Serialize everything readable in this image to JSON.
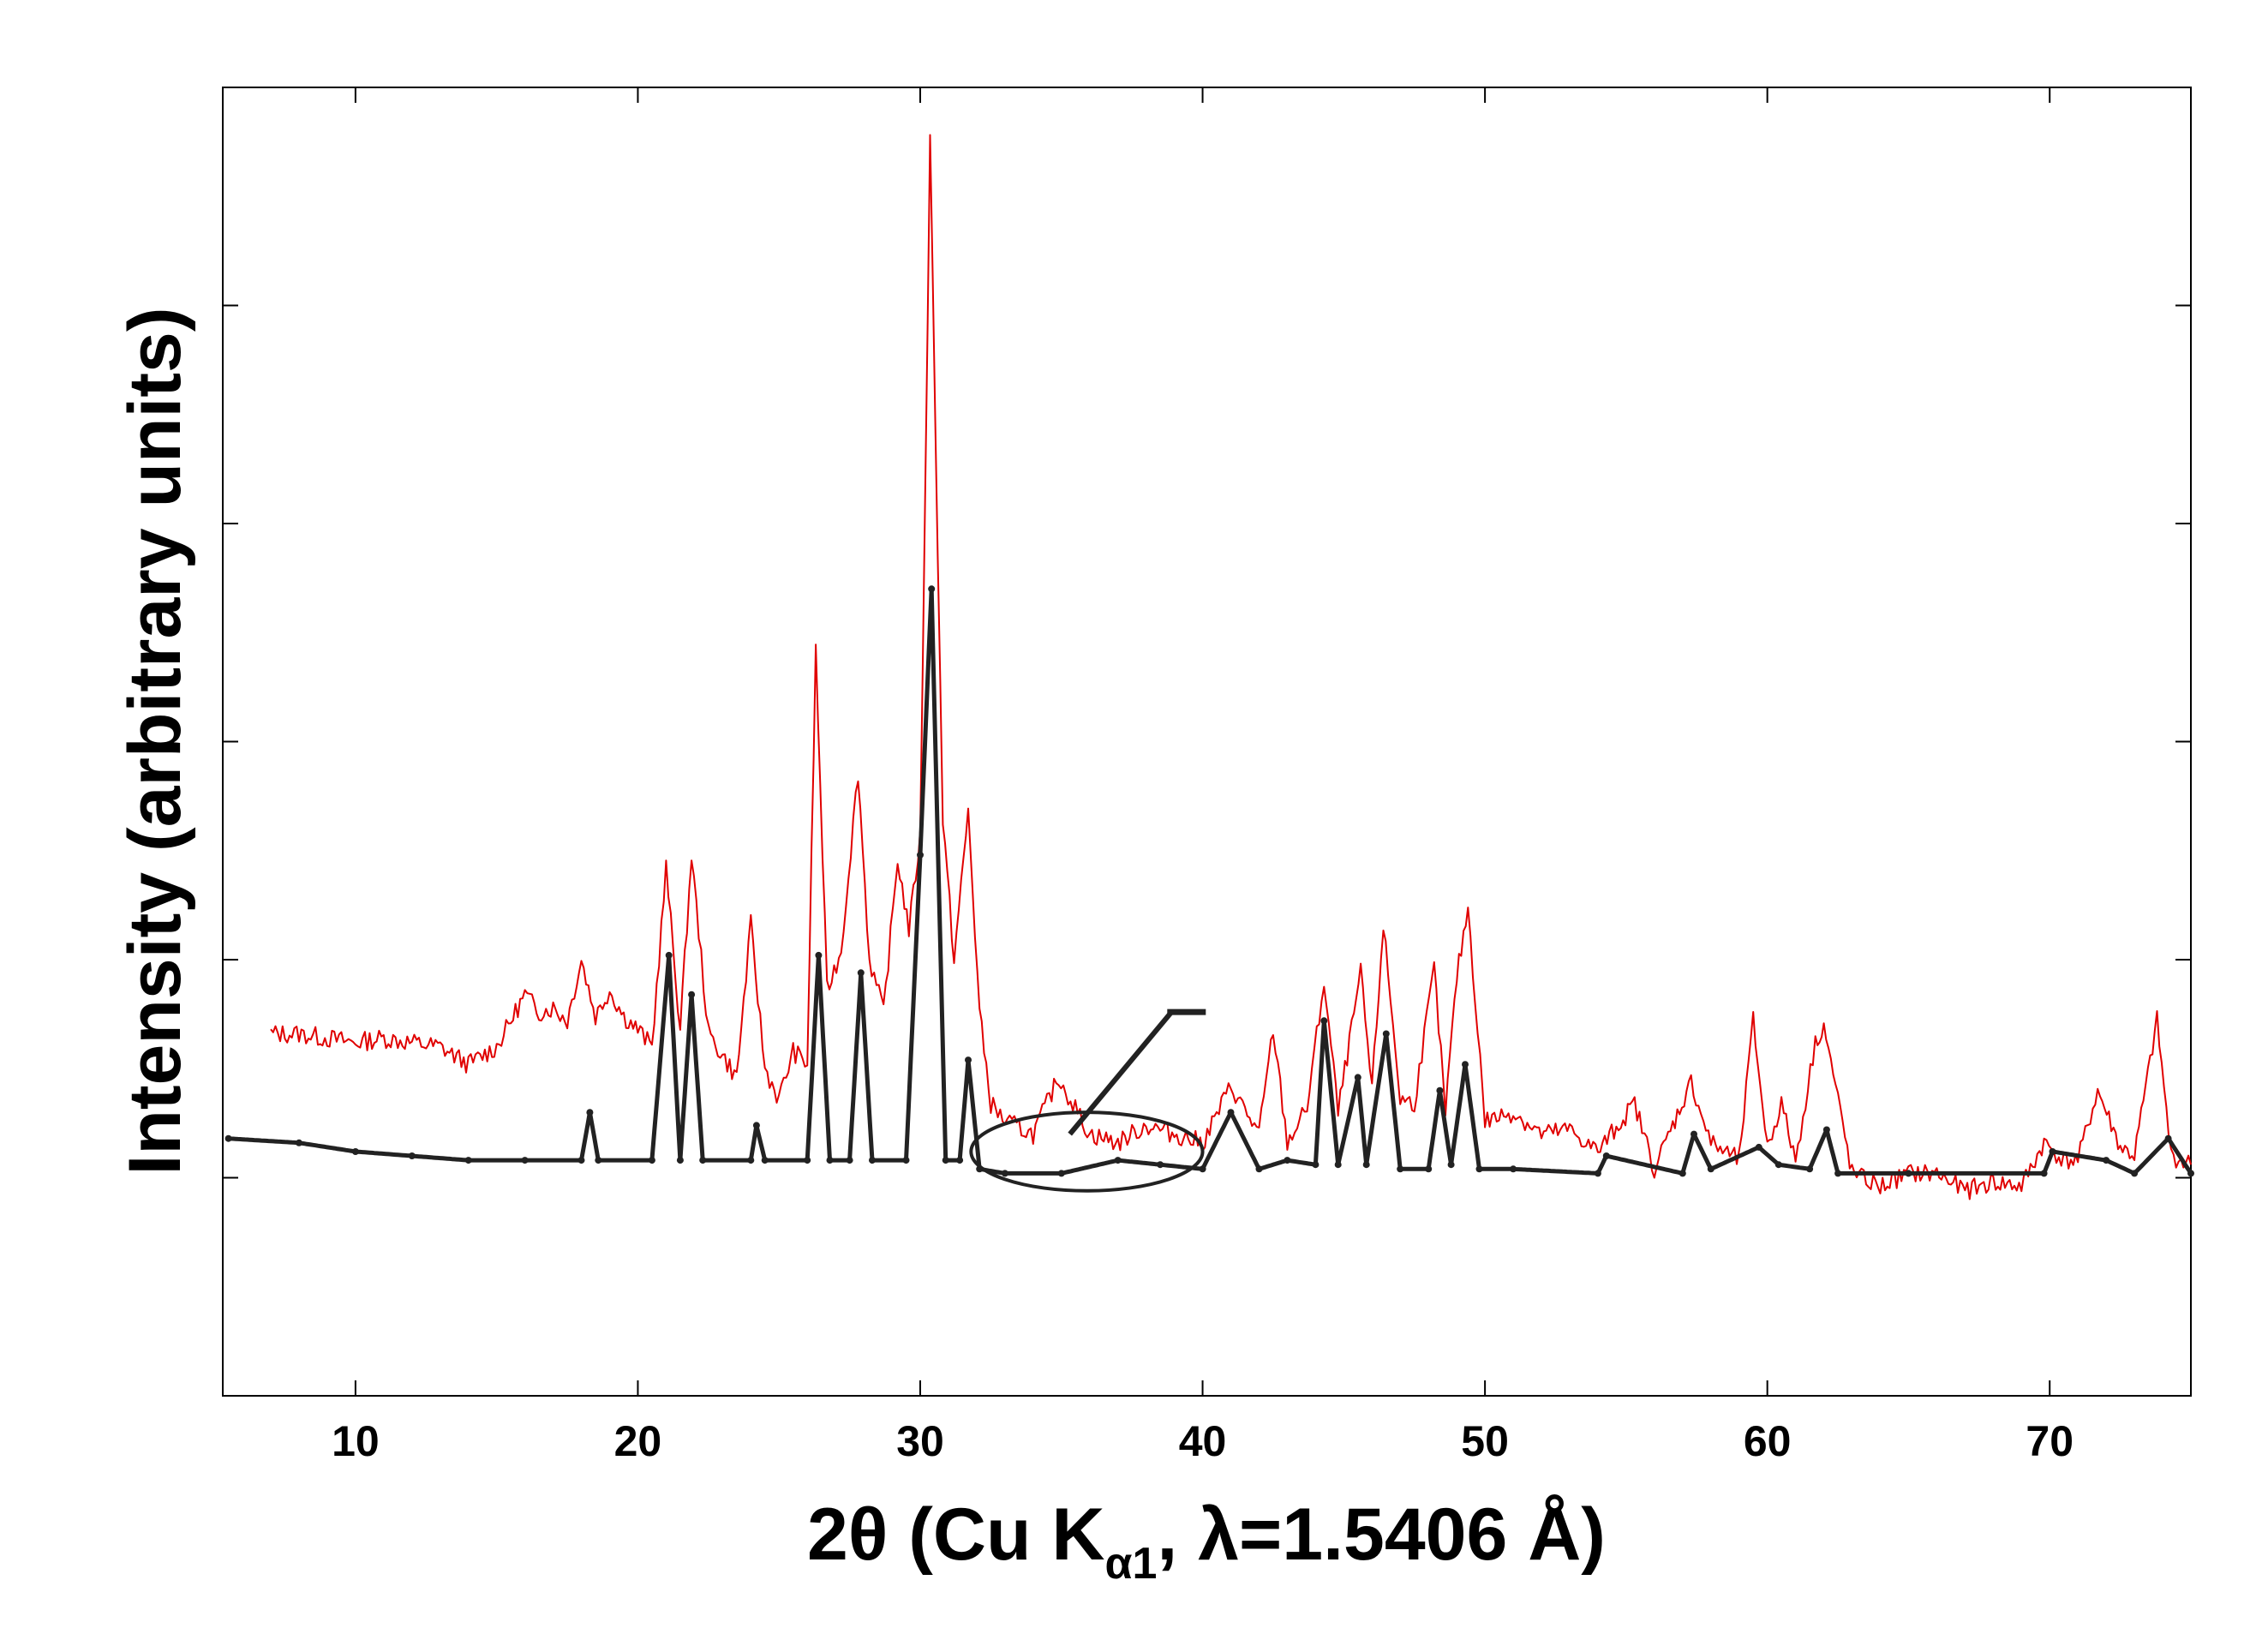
{
  "chart_data": {
    "type": "line",
    "xlabel": "2θ (Cu K",
    "xlabel_sub": "α1",
    "xlabel_tail": ", λ=1.5406 Å)",
    "ylabel": "Intensity (arbitrary units)",
    "xlim": [
      5.3,
      75
    ],
    "ylim": [
      -0.5,
      2.5
    ],
    "x_ticks": [
      10,
      20,
      30,
      40,
      50,
      60,
      70
    ],
    "y_ticks_count": 5,
    "y_tick_labels_shown": false,
    "grid": false,
    "legend": "none",
    "series": [
      {
        "color": "#e00000",
        "style": "noisy line",
        "x": [
          7.0,
          8,
          9,
          10,
          11,
          12,
          13,
          14,
          15,
          15.5,
          16.0,
          16.5,
          17.0,
          17.5,
          18.0,
          18.5,
          19.0,
          19.5,
          20.0,
          20.5,
          21.0,
          21.5,
          21.9,
          22.5,
          23.0,
          23.5,
          24.0,
          24.5,
          25.0,
          25.5,
          26.0,
          26.3,
          26.7,
          27.2,
          27.8,
          28.2,
          28.7,
          29.2,
          29.6,
          30.0,
          30.35,
          30.8,
          31.2,
          31.7,
          32.1,
          32.5,
          33.0,
          34.0,
          34.9,
          36.0,
          37.0,
          38.0,
          39.0,
          40.0,
          41.0,
          42.0,
          42.5,
          43.0,
          43.7,
          44.3,
          44.8,
          45.6,
          46.0,
          46.4,
          47.0,
          47.5,
          48.2,
          48.6,
          49.0,
          49.4,
          50.0,
          51.0,
          52.0,
          53.0,
          54.0,
          55.3,
          56.0,
          57.3,
          58.0,
          59.0,
          59.5,
          60.0,
          60.5,
          61.0,
          61.7,
          62.0,
          63.0,
          64.0,
          65.0,
          66.0,
          67.0,
          68.0,
          69.0,
          69.8,
          70.5,
          71.0,
          71.7,
          72.5,
          73.0,
          73.8,
          74.3,
          75.0
        ],
        "y": [
          0.33,
          0.33,
          0.32,
          0.31,
          0.32,
          0.31,
          0.3,
          0.26,
          0.3,
          0.36,
          0.42,
          0.38,
          0.39,
          0.36,
          0.5,
          0.37,
          0.43,
          0.37,
          0.34,
          0.3,
          0.71,
          0.34,
          0.74,
          0.33,
          0.28,
          0.23,
          0.58,
          0.25,
          0.18,
          0.29,
          0.26,
          1.21,
          0.43,
          0.52,
          0.93,
          0.5,
          0.38,
          0.73,
          0.57,
          0.78,
          2.38,
          0.82,
          0.5,
          0.84,
          0.38,
          0.17,
          0.13,
          0.1,
          0.23,
          0.1,
          0.08,
          0.12,
          0.1,
          0.08,
          0.21,
          0.1,
          0.34,
          0.08,
          0.16,
          0.45,
          0.15,
          0.47,
          0.2,
          0.58,
          0.18,
          0.17,
          0.48,
          0.15,
          0.46,
          0.62,
          0.13,
          0.15,
          0.1,
          0.11,
          0.06,
          0.17,
          0.02,
          0.22,
          0.08,
          0.04,
          0.36,
          0.07,
          0.17,
          0.04,
          0.31,
          0.35,
          0.01,
          -0.02,
          0.01,
          0.01,
          -0.03,
          -0.01,
          -0.02,
          0.08,
          0.04,
          0.04,
          0.2,
          0.07,
          0.05,
          0.36,
          0.05,
          0.03
        ]
      },
      {
        "color": "#222222",
        "style": "calculated pattern",
        "x": [
          5.5,
          8,
          10,
          12,
          14,
          16,
          18.0,
          18.3,
          18.6,
          20.5,
          21.1,
          21.5,
          21.9,
          22.3,
          24.0,
          24.2,
          24.5,
          26.0,
          26.4,
          26.8,
          27.5,
          27.9,
          28.3,
          29.5,
          30.0,
          30.4,
          30.9,
          31.4,
          31.7,
          32.1,
          33.0,
          35.0,
          37.0,
          38.5,
          40.0,
          41.0,
          42.0,
          43.0,
          44.0,
          44.3,
          44.8,
          45.5,
          45.8,
          46.5,
          47.0,
          48.0,
          48.4,
          48.8,
          49.3,
          49.8,
          51.0,
          54.0,
          54.3,
          57.0,
          57.4,
          58.0,
          59.7,
          60.4,
          61.5,
          62.1,
          62.5,
          65.0,
          69.8,
          70.1,
          72.0,
          73.0,
          74.2,
          75.0
        ],
        "y": [
          0.09,
          0.08,
          0.06,
          0.05,
          0.04,
          0.04,
          0.04,
          0.15,
          0.04,
          0.04,
          0.51,
          0.04,
          0.42,
          0.04,
          0.04,
          0.12,
          0.04,
          0.04,
          0.51,
          0.04,
          0.04,
          0.47,
          0.04,
          0.04,
          0.74,
          1.35,
          0.04,
          0.04,
          0.27,
          0.02,
          0.01,
          0.01,
          0.04,
          0.03,
          0.02,
          0.15,
          0.02,
          0.04,
          0.03,
          0.36,
          0.03,
          0.23,
          0.03,
          0.33,
          0.02,
          0.02,
          0.2,
          0.03,
          0.26,
          0.02,
          0.02,
          0.01,
          0.05,
          0.01,
          0.1,
          0.02,
          0.07,
          0.03,
          0.02,
          0.11,
          0.01,
          0.01,
          0.01,
          0.06,
          0.04,
          0.01,
          0.09,
          0.01
        ]
      }
    ],
    "annotations": [
      {
        "type": "ellipse",
        "color": "#222222",
        "cx": 35.9,
        "cy": 0.06,
        "rx": 4.1,
        "ry": 0.09
      },
      {
        "type": "line",
        "color": "#222222",
        "from": [
          35.3,
          0.1
        ],
        "to": [
          38.9,
          0.38
        ]
      }
    ]
  }
}
